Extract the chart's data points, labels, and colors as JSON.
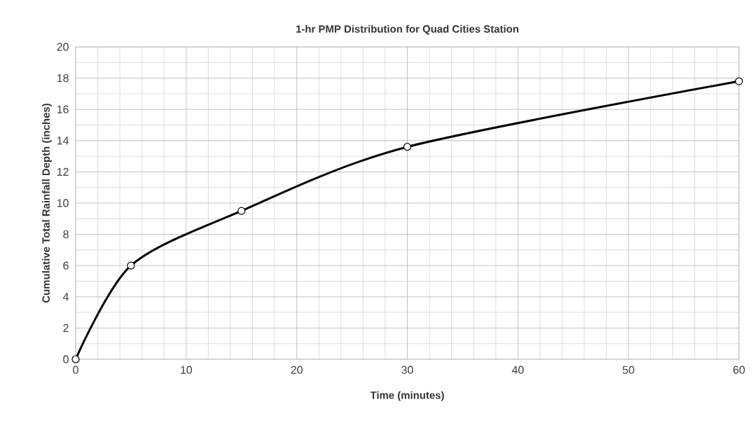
{
  "chart_data": {
    "type": "line",
    "title": "1-hr PMP Distribution for Quad Cities Station",
    "xlabel": "Time (minutes)",
    "ylabel": "Cumulative Total Rainfall Depth (inches)",
    "x": [
      0,
      5,
      15,
      30,
      60
    ],
    "series": [
      {
        "color": "#000000",
        "values": [
          0,
          6,
          9.5,
          13.6,
          17.8
        ]
      }
    ],
    "xlim": [
      0,
      60
    ],
    "ylim": [
      0,
      20
    ],
    "xticks": [
      0,
      10,
      20,
      30,
      40,
      50,
      60
    ],
    "yticks": [
      0,
      2,
      4,
      6,
      8,
      10,
      12,
      14,
      16,
      18,
      20
    ],
    "grid": true,
    "marker": "circle",
    "line_style": "solid"
  }
}
